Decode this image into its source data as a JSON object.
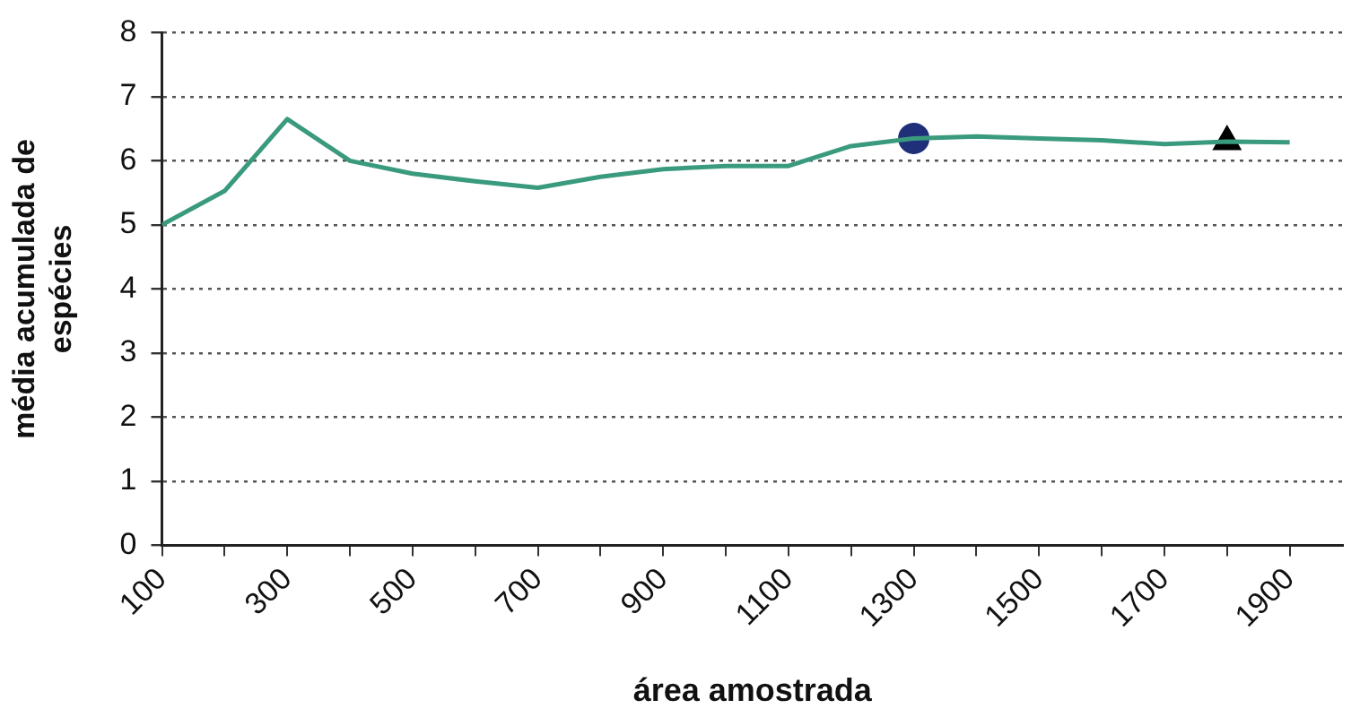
{
  "chart_data": {
    "type": "line",
    "xlabel": "área amostrada",
    "ylabel": "média acumulada de espécies",
    "xlim": [
      100,
      1985
    ],
    "ylim": [
      0,
      8
    ],
    "xticks": [
      100,
      {
        "value": 200,
        "label": null
      },
      300,
      {
        "value": 400,
        "label": null
      },
      500,
      {
        "value": 600,
        "label": null
      },
      700,
      {
        "value": 800,
        "label": null
      },
      900,
      {
        "value": 1000,
        "label": null
      },
      1100,
      {
        "value": 1200,
        "label": null
      },
      1300,
      {
        "value": 1400,
        "label": null
      },
      1500,
      {
        "value": 1600,
        "label": null
      },
      1700,
      {
        "value": 1800,
        "label": null
      },
      1900
    ],
    "yticks": [
      0,
      1,
      2,
      3,
      4,
      5,
      6,
      7,
      8
    ],
    "grid": "y",
    "legend": false,
    "series": [
      {
        "color": "#3a9a7e",
        "marker": "none",
        "line_style": "solid",
        "x": [
          100,
          200,
          300,
          400,
          500,
          600,
          700,
          800,
          900,
          1000,
          1100,
          1200,
          1300,
          1400,
          1500,
          1600,
          1700,
          1800,
          1900
        ],
        "values": [
          5.0,
          5.53,
          6.65,
          6.0,
          5.8,
          5.68,
          5.58,
          5.75,
          5.87,
          5.92,
          5.92,
          6.23,
          6.35,
          6.38,
          6.35,
          6.32,
          6.26,
          6.3,
          6.29
        ]
      },
      {
        "type": "scatter",
        "color": "#1f2f7a",
        "marker": "circle",
        "x": [
          1300
        ],
        "values": [
          6.35
        ]
      },
      {
        "type": "scatter",
        "color": "#000000",
        "marker": "triangle",
        "x": [
          1800
        ],
        "values": [
          6.3
        ]
      }
    ]
  }
}
